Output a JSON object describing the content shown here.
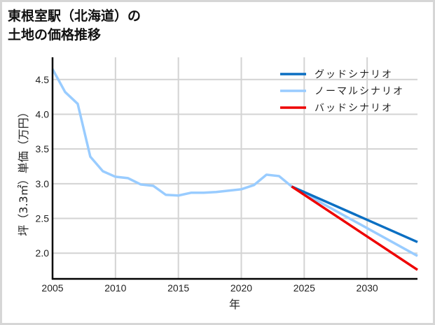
{
  "chart_data": {
    "type": "line",
    "title_line1": "東根室駅（北海道）の",
    "title_line2": "土地の価格推移",
    "xlabel": "年",
    "ylabel": "坪（3.3㎡）単価（万円）",
    "xlim": [
      2005,
      2034
    ],
    "ylim": [
      1.63,
      4.82
    ],
    "xticks": [
      2005,
      2010,
      2015,
      2020,
      2025,
      2030
    ],
    "xtick_labels": [
      "2005",
      "2010",
      "2015",
      "2020",
      "2025",
      "2030"
    ],
    "yticks": [
      2.0,
      2.5,
      3.0,
      3.5,
      4.0,
      4.5
    ],
    "ytick_labels": [
      "2.0",
      "2.5",
      "3.0",
      "3.5",
      "4.0",
      "4.5"
    ],
    "grid": true,
    "legend_position": "upper right",
    "series": [
      {
        "name": "グッドシナリオ",
        "color": "#0b6fc2",
        "x": [
          2024,
          2034
        ],
        "values": [
          2.96,
          2.16
        ]
      },
      {
        "name": "ノーマルシナリオ",
        "color": "#99ccff",
        "x": [
          2005,
          2006,
          2007,
          2008,
          2009,
          2010,
          2011,
          2012,
          2013,
          2014,
          2015,
          2016,
          2017,
          2018,
          2019,
          2020,
          2021,
          2022,
          2023,
          2024,
          2034
        ],
        "values": [
          4.65,
          4.32,
          4.15,
          3.39,
          3.18,
          3.1,
          3.08,
          2.99,
          2.97,
          2.84,
          2.83,
          2.87,
          2.87,
          2.88,
          2.9,
          2.92,
          2.98,
          3.13,
          3.11,
          2.96,
          1.96
        ]
      },
      {
        "name": "バッドシナリオ",
        "color": "#ee0000",
        "x": [
          2024,
          2034
        ],
        "values": [
          2.96,
          1.76
        ]
      }
    ]
  }
}
